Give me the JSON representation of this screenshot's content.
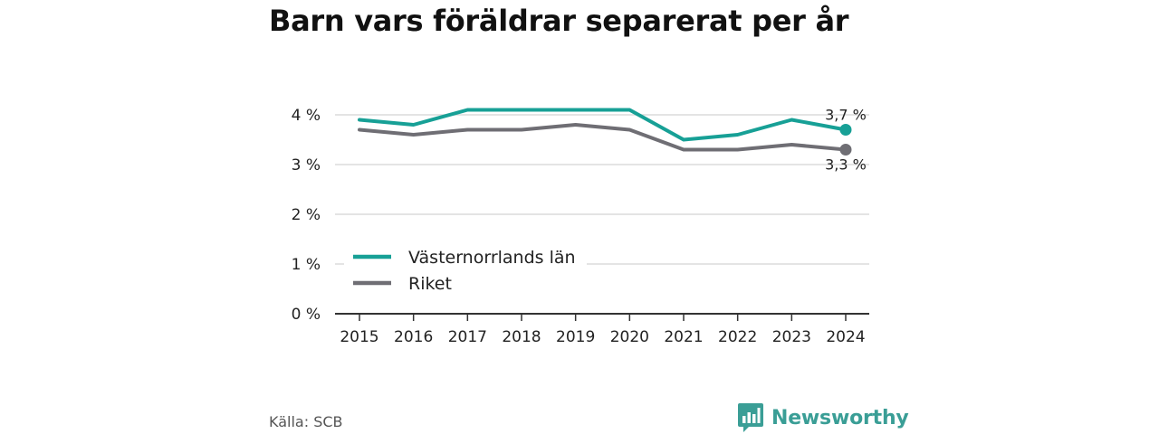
{
  "title": "Barn vars föräldrar separerat per år",
  "source": "Källa: SCB",
  "brand": {
    "name": "Newsworthy",
    "logo_icon": "bar-chart-speech-bubble-icon",
    "color": "#3a9e96"
  },
  "chart_data": {
    "type": "line",
    "x": [
      "2015",
      "2016",
      "2017",
      "2018",
      "2019",
      "2020",
      "2021",
      "2022",
      "2023",
      "2024"
    ],
    "series": [
      {
        "name": "Västernorrlands län",
        "color": "#17a096",
        "values": [
          3.9,
          3.8,
          4.1,
          4.1,
          4.1,
          4.1,
          3.5,
          3.6,
          3.9,
          3.7
        ],
        "end_label": "3,7 %"
      },
      {
        "name": "Riket",
        "color": "#6f6e74",
        "values": [
          3.7,
          3.6,
          3.7,
          3.7,
          3.8,
          3.7,
          3.3,
          3.3,
          3.4,
          3.3
        ],
        "end_label": "3,3 %"
      }
    ],
    "y_ticks": [
      0,
      1,
      2,
      3,
      4
    ],
    "y_tick_labels": [
      "0 %",
      "1 %",
      "2 %",
      "3 %",
      "4 %"
    ],
    "ylim": [
      0,
      4.4
    ],
    "grid": true,
    "legend_position": "lower-left"
  }
}
